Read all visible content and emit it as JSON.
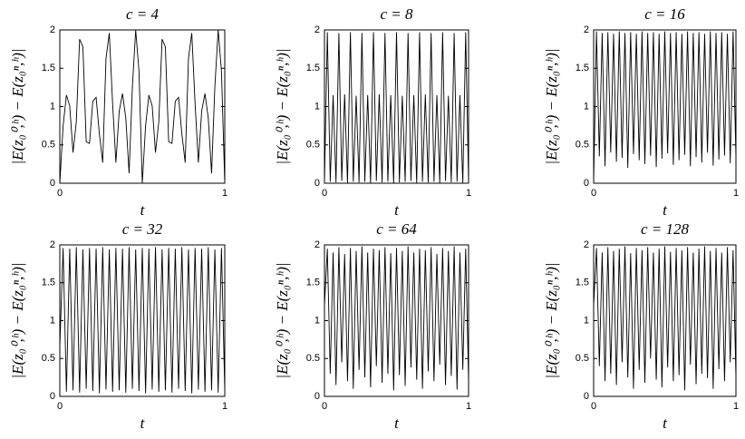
{
  "chart_data": [
    {
      "type": "line",
      "title": "c = 4",
      "xlabel": "t",
      "ylabel": "|E(z₀⁰,ʰ) − E(z₀ⁿ,ʰ)|",
      "color": "#000000",
      "xlim": [
        0,
        1
      ],
      "ylim": [
        0,
        2
      ],
      "xticks": [
        0,
        1
      ],
      "yticks": [
        0,
        0.5,
        1,
        1.5,
        2
      ],
      "x": [
        0,
        0.02,
        0.04,
        0.06,
        0.08,
        0.1,
        0.12,
        0.14,
        0.16,
        0.18,
        0.2,
        0.22,
        0.24,
        0.26,
        0.28,
        0.3,
        0.32,
        0.34,
        0.36,
        0.38,
        0.4,
        0.42,
        0.44,
        0.46,
        0.48,
        0.5,
        0.52,
        0.54,
        0.56,
        0.58,
        0.6,
        0.62,
        0.64,
        0.66,
        0.68,
        0.7,
        0.72,
        0.74,
        0.76,
        0.78,
        0.8,
        0.82,
        0.84,
        0.86,
        0.88,
        0.9,
        0.92,
        0.94,
        0.96,
        0.98,
        1
      ],
      "values": [
        0,
        0.75,
        1.15,
        1.01,
        0.4,
        0.8,
        1.88,
        1.78,
        0.54,
        0.52,
        1.07,
        1.12,
        0.64,
        0.27,
        1.63,
        1.96,
        1.04,
        0.27,
        0.94,
        1.17,
        0.85,
        0.13,
        1.26,
        2.0,
        1.46,
        0,
        0.75,
        1.15,
        1.01,
        0.4,
        0.8,
        1.88,
        1.78,
        0.54,
        0.52,
        1.07,
        1.12,
        0.64,
        0.27,
        1.63,
        1.96,
        1.04,
        0.27,
        0.94,
        1.17,
        0.85,
        0.13,
        1.26,
        2.0,
        1.46,
        0
      ]
    },
    {
      "type": "line",
      "title": "c = 8",
      "xlabel": "t",
      "ylabel": "|E(z₀⁰,ʰ) − E(z₀ⁿ,ʰ)|",
      "color": "#000000",
      "xlim": [
        0,
        1
      ],
      "ylim": [
        0,
        2
      ],
      "xticks": [
        0,
        1
      ],
      "yticks": [
        0,
        0.5,
        1,
        1.5,
        2
      ],
      "x": [
        0,
        0.02,
        0.04,
        0.06,
        0.08,
        0.1,
        0.12,
        0.14,
        0.16,
        0.18,
        0.2,
        0.22,
        0.24,
        0.26,
        0.28,
        0.3,
        0.32,
        0.34,
        0.36,
        0.38,
        0.4,
        0.42,
        0.44,
        0.46,
        0.48,
        0.5,
        0.52,
        0.54,
        0.56,
        0.58,
        0.6,
        0.62,
        0.64,
        0.66,
        0.68,
        0.7,
        0.72,
        0.74,
        0.76,
        0.78,
        0.8,
        0.82,
        0.84,
        0.86,
        0.88,
        0.9,
        0.92,
        0.94,
        0.96,
        0.98,
        1
      ],
      "values": [
        0,
        1.97,
        0.02,
        1.15,
        0.01,
        1.96,
        0.03,
        1.16,
        0,
        1.97,
        0.02,
        1.14,
        0.01,
        1.96,
        0.02,
        1.15,
        0,
        1.97,
        0.03,
        1.16,
        0.01,
        1.96,
        0.02,
        1.15,
        0,
        1.97,
        0.01,
        1.14,
        0.02,
        1.96,
        0.03,
        1.15,
        0,
        1.97,
        0.02,
        1.16,
        0.01,
        1.96,
        0.02,
        1.15,
        0,
        1.97,
        0.03,
        1.14,
        0.01,
        1.96,
        0.02,
        1.15,
        0,
        1.97,
        0.02
      ]
    },
    {
      "type": "line",
      "title": "c = 16",
      "xlabel": "t",
      "ylabel": "|E(z₀⁰,ʰ) − E(z₀ⁿ,ʰ)|",
      "color": "#000000",
      "xlim": [
        0,
        1
      ],
      "ylim": [
        0,
        2
      ],
      "xticks": [
        0,
        1
      ],
      "yticks": [
        0,
        0.5,
        1,
        1.5,
        2
      ],
      "x": [
        0,
        0.02,
        0.04,
        0.06,
        0.08,
        0.1,
        0.12,
        0.14,
        0.16,
        0.18,
        0.2,
        0.22,
        0.24,
        0.26,
        0.28,
        0.3,
        0.32,
        0.34,
        0.36,
        0.38,
        0.4,
        0.42,
        0.44,
        0.46,
        0.48,
        0.5,
        0.52,
        0.54,
        0.56,
        0.58,
        0.6,
        0.62,
        0.64,
        0.66,
        0.68,
        0.7,
        0.72,
        0.74,
        0.76,
        0.78,
        0.8,
        0.82,
        0.84,
        0.86,
        0.88,
        0.9,
        0.92,
        0.94,
        0.96,
        0.98,
        1
      ],
      "values": [
        0,
        1.98,
        0.35,
        1.96,
        0.22,
        1.97,
        0.4,
        1.95,
        0.28,
        1.98,
        0.33,
        1.96,
        0.2,
        1.97,
        0.38,
        1.95,
        0.3,
        1.98,
        0.25,
        1.96,
        0.36,
        1.97,
        0.21,
        1.95,
        0.32,
        1.98,
        0.39,
        1.96,
        0.24,
        1.97,
        0.3,
        1.95,
        0.37,
        1.98,
        0.22,
        1.96,
        0.34,
        1.97,
        0.27,
        1.95,
        0.4,
        1.98,
        0.23,
        1.96,
        0.31,
        1.97,
        0.36,
        1.95,
        0.26,
        1.98,
        0.33
      ]
    },
    {
      "type": "line",
      "title": "c = 32",
      "xlabel": "t",
      "ylabel": "|E(z₀⁰,ʰ) − E(z₀ⁿ,ʰ)|",
      "color": "#000000",
      "xlim": [
        0,
        1
      ],
      "ylim": [
        0,
        2
      ],
      "xticks": [
        0,
        1
      ],
      "yticks": [
        0,
        0.5,
        1,
        1.5,
        2
      ],
      "x": [
        0,
        0.02,
        0.04,
        0.06,
        0.08,
        0.1,
        0.12,
        0.14,
        0.16,
        0.18,
        0.2,
        0.22,
        0.24,
        0.26,
        0.28,
        0.3,
        0.32,
        0.34,
        0.36,
        0.38,
        0.4,
        0.42,
        0.44,
        0.46,
        0.48,
        0.5,
        0.52,
        0.54,
        0.56,
        0.58,
        0.6,
        0.62,
        0.64,
        0.66,
        0.68,
        0.7,
        0.72,
        0.74,
        0.76,
        0.78,
        0.8,
        0.82,
        0.84,
        0.86,
        0.88,
        0.9,
        0.92,
        0.94,
        0.96,
        0.98,
        1
      ],
      "values": [
        0.65,
        1.96,
        0.06,
        1.95,
        0.08,
        1.97,
        0.05,
        1.94,
        0.1,
        1.96,
        0.07,
        1.95,
        0.04,
        1.97,
        0.09,
        1.94,
        0.06,
        1.96,
        0.08,
        1.95,
        0.05,
        1.97,
        0.1,
        1.94,
        0.07,
        1.96,
        0.04,
        1.95,
        0.09,
        1.97,
        0.06,
        1.94,
        0.08,
        1.96,
        0.05,
        1.95,
        0.1,
        1.97,
        0.07,
        1.94,
        0.04,
        1.96,
        0.09,
        1.95,
        0.06,
        1.97,
        0.08,
        1.94,
        0.05,
        1.96,
        0.07
      ]
    },
    {
      "type": "line",
      "title": "c = 64",
      "xlabel": "t",
      "ylabel": "|E(z₀⁰,ʰ) − E(z₀ⁿ,ʰ)|",
      "color": "#000000",
      "xlim": [
        0,
        1
      ],
      "ylim": [
        0,
        2
      ],
      "xticks": [
        0,
        1
      ],
      "yticks": [
        0,
        0.5,
        1,
        1.5,
        2
      ],
      "x": [
        0,
        0.02,
        0.04,
        0.06,
        0.08,
        0.1,
        0.12,
        0.14,
        0.16,
        0.18,
        0.2,
        0.22,
        0.24,
        0.26,
        0.28,
        0.3,
        0.32,
        0.34,
        0.36,
        0.38,
        0.4,
        0.42,
        0.44,
        0.46,
        0.48,
        0.5,
        0.52,
        0.54,
        0.56,
        0.58,
        0.6,
        0.62,
        0.64,
        0.66,
        0.68,
        0.7,
        0.72,
        0.74,
        0.76,
        0.78,
        0.8,
        0.82,
        0.84,
        0.86,
        0.88,
        0.9,
        0.92,
        0.94,
        0.96,
        0.98,
        1
      ],
      "values": [
        1.2,
        1.95,
        0.3,
        1.9,
        0.15,
        1.97,
        0.45,
        1.88,
        0.2,
        1.96,
        0.1,
        1.92,
        0.35,
        1.98,
        0.25,
        1.9,
        0.12,
        1.95,
        0.4,
        1.93,
        0.18,
        1.97,
        0.3,
        1.89,
        0.08,
        1.96,
        0.28,
        1.92,
        0.14,
        1.98,
        0.38,
        1.9,
        0.22,
        1.95,
        0.1,
        1.93,
        0.33,
        1.97,
        0.2,
        1.88,
        0.42,
        1.96,
        0.15,
        1.92,
        0.27,
        1.98,
        0.09,
        1.9,
        0.35,
        1.95,
        0.2
      ]
    },
    {
      "type": "line",
      "title": "c = 128",
      "xlabel": "t",
      "ylabel": "|E(z₀⁰,ʰ) − E(z₀ⁿ,ʰ)|",
      "color": "#000000",
      "xlim": [
        0,
        1
      ],
      "ylim": [
        0,
        2
      ],
      "xticks": [
        0,
        1
      ],
      "yticks": [
        0,
        0.5,
        1,
        1.5,
        2
      ],
      "x": [
        0,
        0.02,
        0.04,
        0.06,
        0.08,
        0.1,
        0.12,
        0.14,
        0.16,
        0.18,
        0.2,
        0.22,
        0.24,
        0.26,
        0.28,
        0.3,
        0.32,
        0.34,
        0.36,
        0.38,
        0.4,
        0.42,
        0.44,
        0.46,
        0.48,
        0.5,
        0.52,
        0.54,
        0.56,
        0.58,
        0.6,
        0.62,
        0.64,
        0.66,
        0.68,
        0.7,
        0.72,
        0.74,
        0.76,
        0.78,
        0.8,
        0.82,
        0.84,
        0.86,
        0.88,
        0.9,
        0.92,
        0.94,
        0.96,
        0.98,
        1
      ],
      "values": [
        1.2,
        1.96,
        0.4,
        1.9,
        0.2,
        1.97,
        0.3,
        1.92,
        0.15,
        1.95,
        0.45,
        1.98,
        0.25,
        1.89,
        0.1,
        1.96,
        0.35,
        1.93,
        0.18,
        1.97,
        0.5,
        1.9,
        0.22,
        1.95,
        0.12,
        1.98,
        0.38,
        1.91,
        0.2,
        1.96,
        0.28,
        1.93,
        0.08,
        1.97,
        0.42,
        1.9,
        0.16,
        1.95,
        0.3,
        1.98,
        0.24,
        1.92,
        0.1,
        1.96,
        0.36,
        1.9,
        0.2,
        1.97,
        0.45,
        1.93,
        0.25
      ]
    }
  ]
}
